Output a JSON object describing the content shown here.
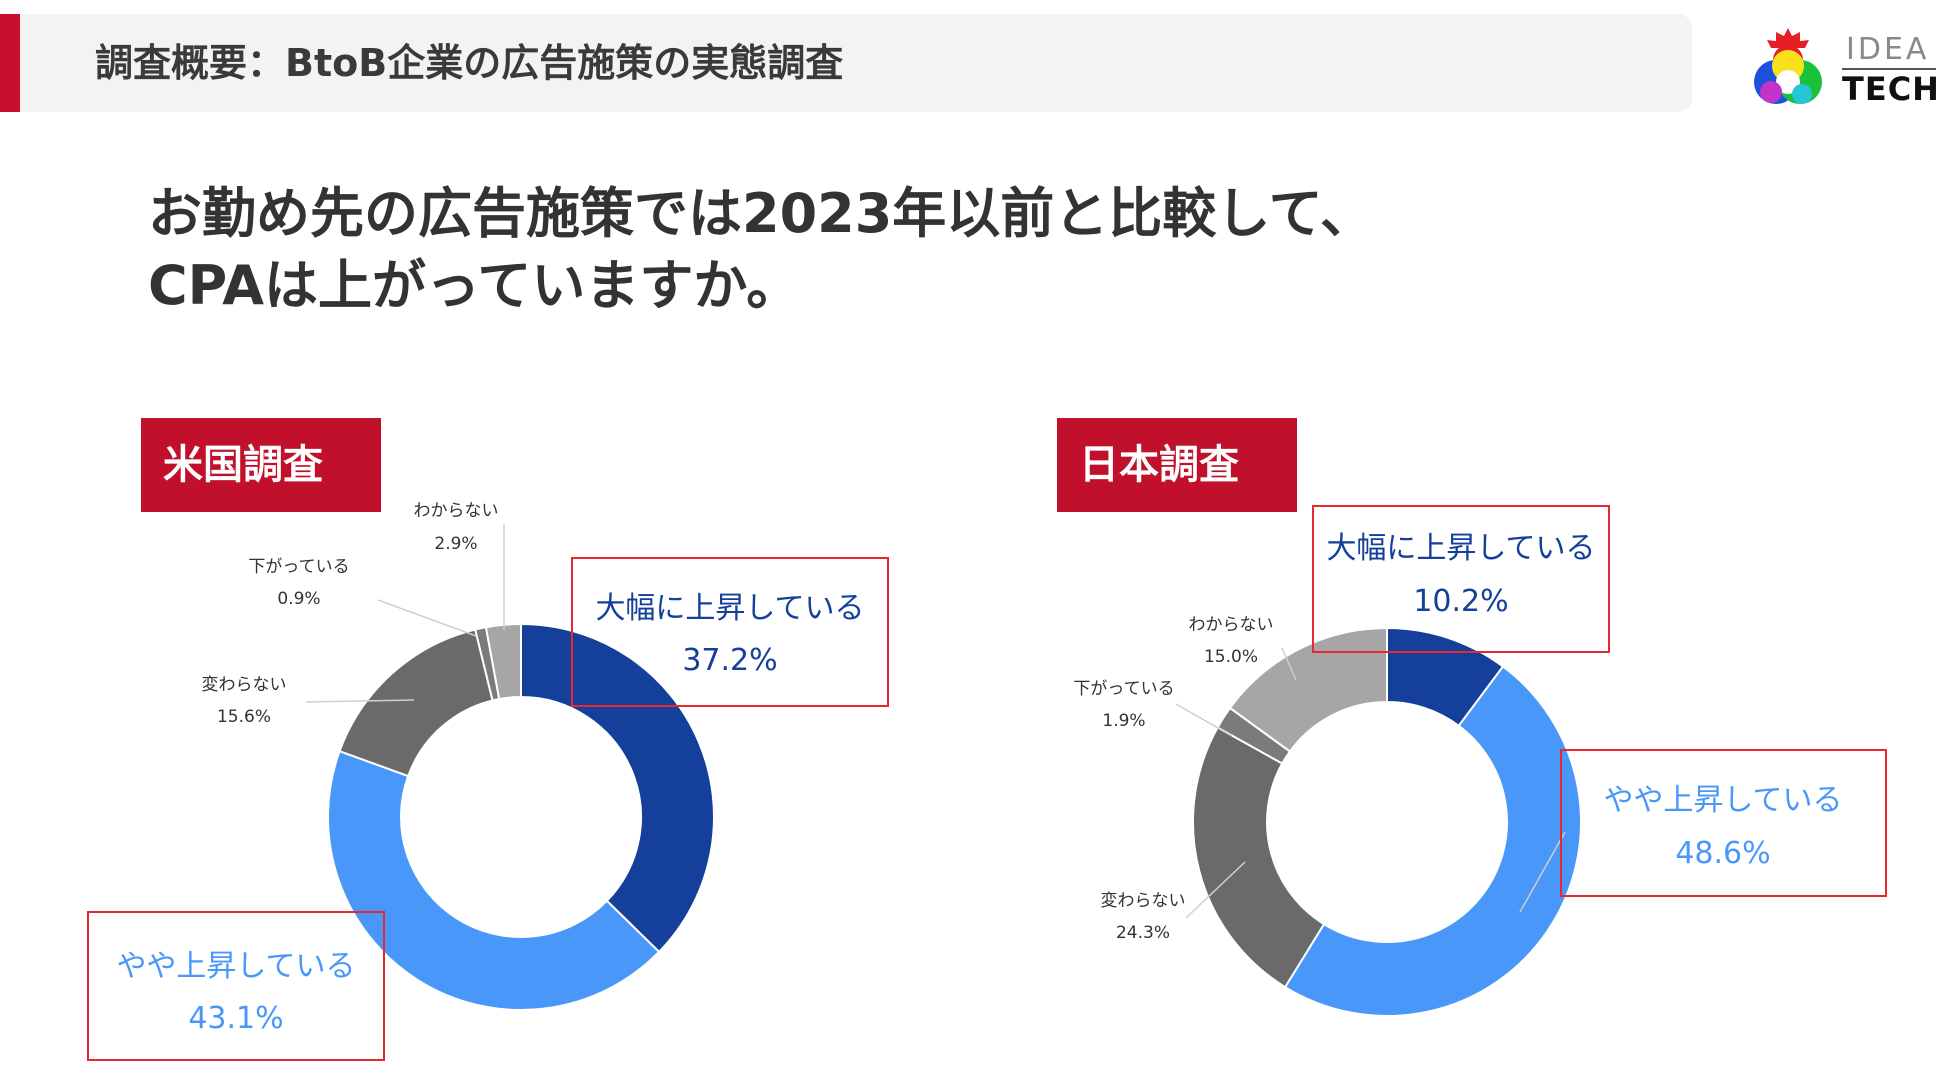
{
  "header": {
    "title": "調査概要：BtoB企業の広告施策の実態調査"
  },
  "logo": {
    "line1": "IDEA",
    "line2": "TECH"
  },
  "question": {
    "line1": "お勤め先の広告施策では2023年以前と比較して、",
    "line2": "CPAは上がっていますか。"
  },
  "colors": {
    "accent": "#c0102c",
    "highlight_border": "#e8272e",
    "dark_blue": "#143f9a",
    "light_blue": "#4a97fa",
    "dark_gray": "#6a6a6a",
    "mid_gray": "#7b7b7b",
    "light_gray": "#a6a6a6"
  },
  "chart_data": [
    {
      "type": "pie",
      "variant": "donut",
      "title": "米国調査",
      "start": "top, clockwise",
      "slices": [
        {
          "label": "大幅に上昇している",
          "value": 37.2,
          "display": "37.2%",
          "color": "#143f9a",
          "highlighted": true
        },
        {
          "label": "やや上昇している",
          "value": 43.1,
          "display": "43.1%",
          "color": "#4a97fa",
          "highlighted": true
        },
        {
          "label": "変わらない",
          "value": 15.6,
          "display": "15.6%",
          "color": "#6a6a6a",
          "highlighted": false
        },
        {
          "label": "下がっている",
          "value": 0.9,
          "display": "0.9%",
          "color": "#7b7b7b",
          "highlighted": false
        },
        {
          "label": "わからない",
          "value": 2.9,
          "display": "2.9%",
          "color": "#a6a6a6",
          "highlighted": false
        }
      ]
    },
    {
      "type": "pie",
      "variant": "donut",
      "title": "日本調査",
      "start": "top, clockwise",
      "slices": [
        {
          "label": "大幅に上昇している",
          "value": 10.2,
          "display": "10.2%",
          "color": "#143f9a",
          "highlighted": true
        },
        {
          "label": "やや上昇している",
          "value": 48.6,
          "display": "48.6%",
          "color": "#4a97fa",
          "highlighted": true
        },
        {
          "label": "変わらない",
          "value": 24.3,
          "display": "24.3%",
          "color": "#6a6a6a",
          "highlighted": false
        },
        {
          "label": "下がっている",
          "value": 1.9,
          "display": "1.9%",
          "color": "#7b7b7b",
          "highlighted": false
        },
        {
          "label": "わからない",
          "value": 15.0,
          "display": "15.0%",
          "color": "#a6a6a6",
          "highlighted": false
        }
      ]
    }
  ]
}
